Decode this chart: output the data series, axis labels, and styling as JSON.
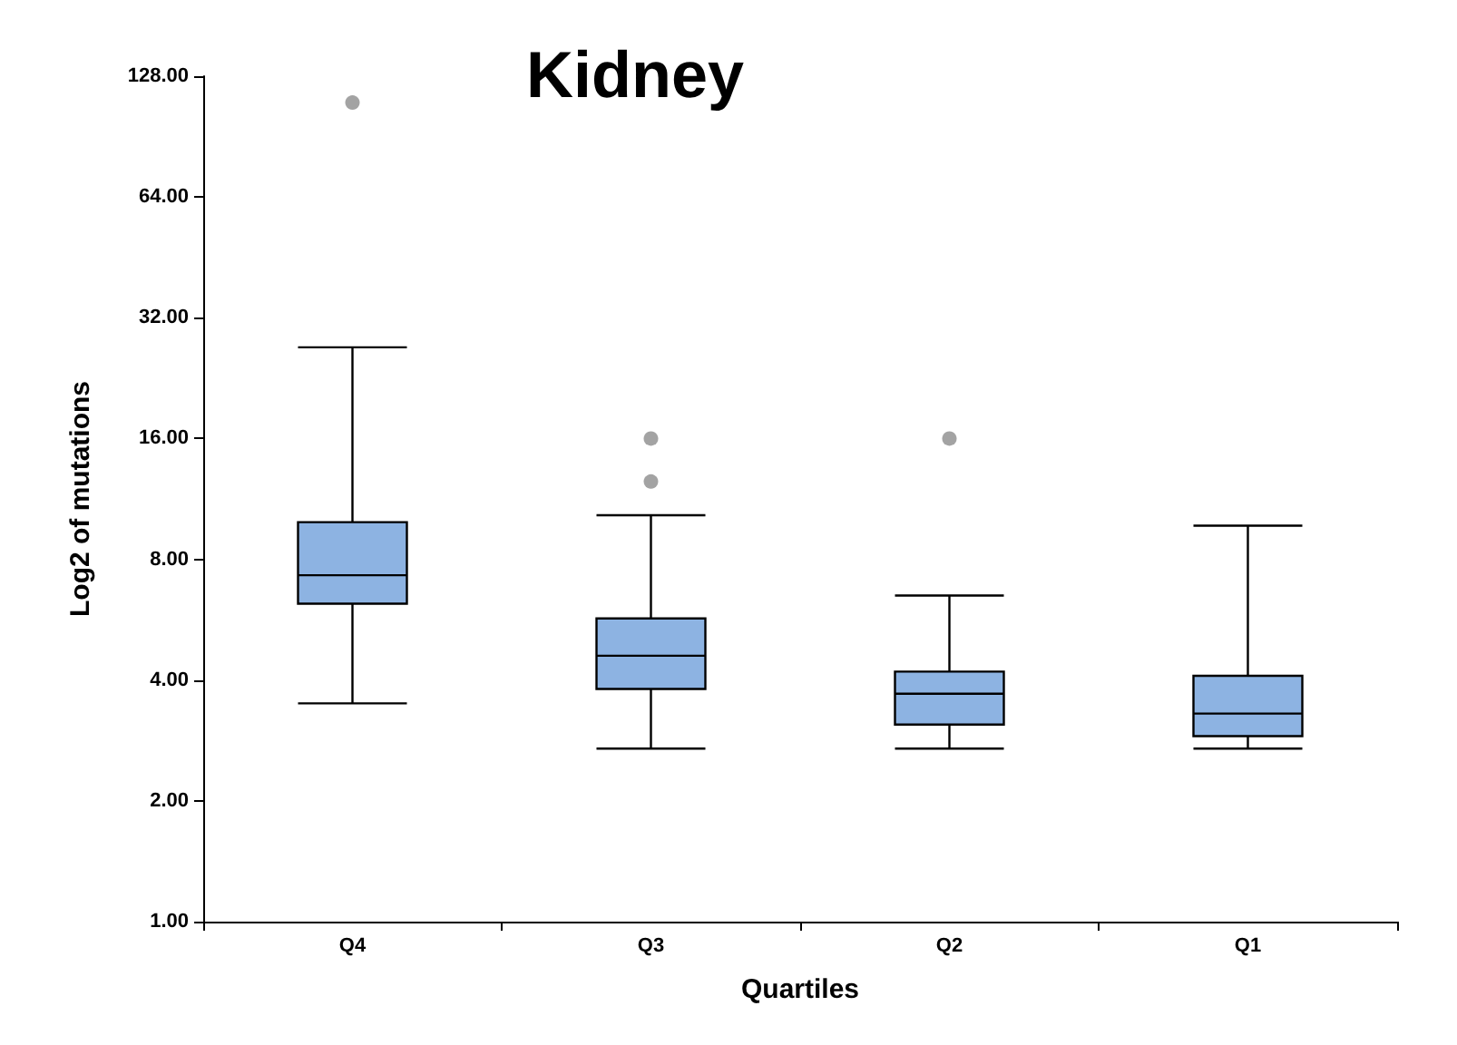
{
  "chart_data": {
    "type": "box",
    "title": "Kidney",
    "xlabel": "Quartiles",
    "ylabel": "Log2 of mutations",
    "categories": [
      "Q4",
      "Q3",
      "Q2",
      "Q1"
    ],
    "log": "y",
    "ylim": [
      1,
      128
    ],
    "yticks": [
      {
        "value": 1,
        "label": "1.00"
      },
      {
        "value": 2,
        "label": "2.00"
      },
      {
        "value": 4,
        "label": "4.00"
      },
      {
        "value": 8,
        "label": "8.00"
      },
      {
        "value": 16,
        "label": "16.00"
      },
      {
        "value": 32,
        "label": "32.00"
      },
      {
        "value": 64,
        "label": "64.00"
      },
      {
        "value": 128,
        "label": "128.00"
      }
    ],
    "grid": false,
    "series": [
      {
        "color": "#8db3e2",
        "boxes": [
          {
            "low": 3.5,
            "q1": 6.2,
            "median": 7.3,
            "q3": 9.9,
            "high": 27
          },
          {
            "low": 2.7,
            "q1": 3.8,
            "median": 4.6,
            "q3": 5.7,
            "high": 10.3
          },
          {
            "low": 2.7,
            "q1": 3.1,
            "median": 3.7,
            "q3": 4.2,
            "high": 6.5
          },
          {
            "low": 2.7,
            "q1": 2.9,
            "median": 3.3,
            "q3": 4.1,
            "high": 9.7
          }
        ]
      },
      {
        "type": "scatter",
        "color": "#8c8c8c",
        "marker": "circle",
        "x": [
          "Q4",
          "Q3",
          "Q3",
          "Q2"
        ],
        "values": [
          110,
          12.5,
          16,
          16
        ]
      }
    ]
  }
}
